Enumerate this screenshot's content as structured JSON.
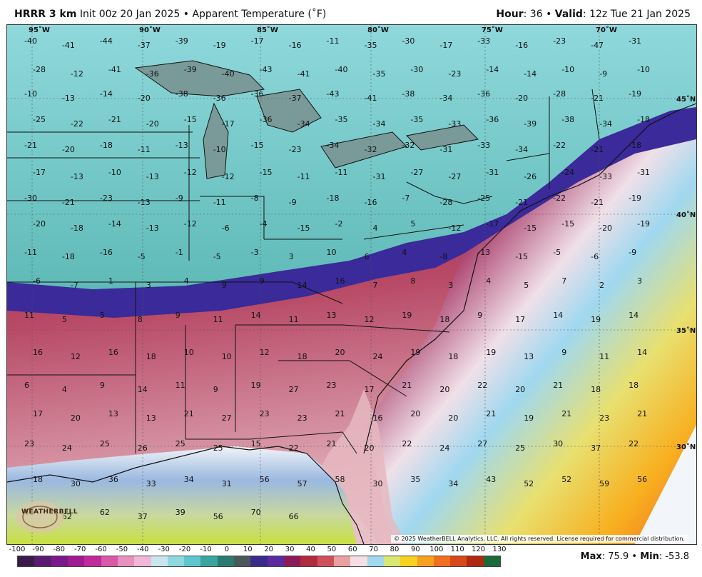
{
  "header": {
    "model": "HRRR 3 km",
    "init": "Init 00z 20 Jan 2025",
    "separator": "•",
    "product": "Apparent Temperature (˚F)",
    "hour_label": "Hour",
    "hour_value": ": 36",
    "valid_label": "Valid",
    "valid_value": ": 12z Tue 21 Jan 2025"
  },
  "map": {
    "longitude_labels": [
      "95˚W",
      "90˚W",
      "85˚W",
      "80˚W",
      "75˚W",
      "70˚W"
    ],
    "latitude_labels": [
      "45˚N",
      "40˚N",
      "35˚N",
      "30˚N"
    ],
    "temperature_labels": [
      "-40",
      "-41",
      "-44",
      "-37",
      "-39",
      "-19",
      "-17",
      "-16",
      "-11",
      "-35",
      "-30",
      "-17",
      "-33",
      "-16",
      "-23",
      "-47",
      "-31",
      "-28",
      "-12",
      "-41",
      "-36",
      "-39",
      "-40",
      "-43",
      "-41",
      "-40",
      "-35",
      "-30",
      "-23",
      "-14",
      "-14",
      "-10",
      "-9",
      "-10",
      "-10",
      "-13",
      "-14",
      "-20",
      "-38",
      "-36",
      "-36",
      "-37",
      "-43",
      "-41",
      "-38",
      "-34",
      "-36",
      "-20",
      "-28",
      "-21",
      "-19",
      "-25",
      "-22",
      "-21",
      "-20",
      "-15",
      "-17",
      "-36",
      "-34",
      "-35",
      "-34",
      "-35",
      "-33",
      "-36",
      "-39",
      "-38",
      "-34",
      "-18",
      "-21",
      "-20",
      "-18",
      "-11",
      "-13",
      "-10",
      "-15",
      "-23",
      "-34",
      "-32",
      "-32",
      "-31",
      "-33",
      "-34",
      "-22",
      "-21",
      "-18",
      "-17",
      "-13",
      "-10",
      "-13",
      "-12",
      "-12",
      "-15",
      "-11",
      "-11",
      "-31",
      "-27",
      "-27",
      "-31",
      "-26",
      "-24",
      "-33",
      "-31",
      "-30",
      "-21",
      "-23",
      "-13",
      "-9",
      "-11",
      "-8",
      "-9",
      "-18",
      "-16",
      "-7",
      "-28",
      "-25",
      "-21",
      "-22",
      "-21",
      "-19",
      "-20",
      "-18",
      "-14",
      "-13",
      "-12",
      "-6",
      "-4",
      "-15",
      "-2",
      "4",
      "5",
      "-12",
      "-17",
      "-15",
      "-15",
      "-20",
      "-19",
      "-11",
      "-18",
      "-16",
      "-5",
      "-1",
      "-5",
      "-3",
      "3",
      "10",
      "6",
      "4",
      "-8",
      "-13",
      "-15",
      "-5",
      "-6",
      "-9",
      "-6",
      "-7",
      "1",
      "3",
      "4",
      "9",
      "9",
      "14",
      "16",
      "7",
      "8",
      "3",
      "4",
      "5",
      "7",
      "2",
      "3",
      "11",
      "5",
      "5",
      "8",
      "9",
      "11",
      "14",
      "11",
      "13",
      "12",
      "19",
      "18",
      "9",
      "17",
      "14",
      "19",
      "14",
      "16",
      "12",
      "16",
      "18",
      "10",
      "10",
      "12",
      "18",
      "20",
      "24",
      "19",
      "18",
      "19",
      "13",
      "9",
      "11",
      "14",
      "6",
      "4",
      "9",
      "14",
      "11",
      "9",
      "19",
      "27",
      "23",
      "17",
      "21",
      "20",
      "22",
      "20",
      "21",
      "18",
      "18",
      "17",
      "20",
      "13",
      "13",
      "21",
      "27",
      "23",
      "23",
      "21",
      "16",
      "20",
      "20",
      "21",
      "19",
      "21",
      "23",
      "21",
      "23",
      "24",
      "25",
      "26",
      "25",
      "25",
      "15",
      "22",
      "21",
      "20",
      "22",
      "24",
      "27",
      "25",
      "30",
      "37",
      "22",
      "18",
      "30",
      "36",
      "33",
      "34",
      "31",
      "56",
      "57",
      "58",
      "30",
      "35",
      "34",
      "43",
      "52",
      "52",
      "59",
      "56",
      "60",
      "62",
      "62",
      "37",
      "39",
      "56",
      "70",
      "66"
    ]
  },
  "copyright": "© 2025 WeatherBELL Analytics, LLC. All rights reserved. License required for commercial distribution.",
  "logo": {
    "text": "WEATHERBELL"
  },
  "colorbar": {
    "ticks": [
      "-100",
      "-90",
      "-80",
      "-70",
      "-60",
      "-50",
      "-40",
      "-30",
      "-20",
      "-10",
      "0",
      "10",
      "20",
      "30",
      "40",
      "50",
      "60",
      "70",
      "80",
      "90",
      "100",
      "110",
      "120",
      "130"
    ],
    "colors": [
      "#3a1a4a",
      "#5a1a70",
      "#7a1a8a",
      "#a01a90",
      "#c02a9a",
      "#d85aa8",
      "#e890c0",
      "#f0b8d8",
      "#c9e6ee",
      "#8fd8e0",
      "#5ec6cf",
      "#3aa59e",
      "#2a7a73",
      "#4a5a5a",
      "#3a2a8a",
      "#5a2aa0",
      "#8a1a5a",
      "#b02a40",
      "#d0505a",
      "#e8a0a0",
      "#f4e0e4",
      "#a0d8f0",
      "#d8e870",
      "#f8d020",
      "#f8a020",
      "#f07020",
      "#d84818",
      "#b02810",
      "#1a6a3a"
    ],
    "max_label": "Max",
    "max_value": ": 75.9",
    "min_label": "Min",
    "min_value": ": -53.8",
    "mm_separator": "•"
  }
}
